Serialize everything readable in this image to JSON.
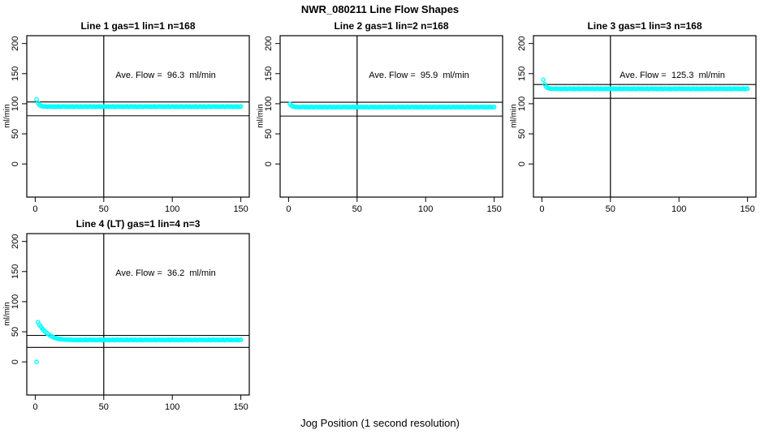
{
  "figure": {
    "title": "NWR_080211  Line Flow Shapes",
    "xlabel": "Jog Position (1 second resolution)",
    "point_color": "#00FFFF",
    "axis_color": "#000000",
    "background": "#FFFFFF"
  },
  "chart_data": [
    {
      "type": "scatter",
      "grid": {
        "row": 0,
        "col": 0
      },
      "title": "Line 1 gas=1 lin=1 n=168",
      "annotation": "Ave. Flow =  96.3  ml/min",
      "ave_flow_ml_min": 96.3,
      "n": 168,
      "ylabel": "ml/min",
      "xlim": [
        0,
        150
      ],
      "ylim_plotted": [
        -55,
        213
      ],
      "xticks": [
        0,
        50,
        100,
        150
      ],
      "yticks": [
        0,
        50,
        100,
        150,
        200
      ],
      "ref_vline_x": 50,
      "ref_hlines": [
        103,
        80
      ],
      "marker": "open-circle",
      "x_start": 1,
      "x_step": 1,
      "y": [
        107.2,
        101.2,
        98.2,
        96.7,
        96.0,
        95.6,
        95.4,
        95.3,
        95.2,
        95.5,
        95.4,
        95.0,
        95.6,
        94.9,
        95.3,
        95.1,
        95.7,
        94.8,
        95.2,
        95.5,
        95.4,
        95.0,
        95.6,
        94.9,
        95.3,
        95.1,
        95.7,
        94.8,
        95.2,
        95.5,
        95.4,
        95.0,
        95.6,
        94.9,
        95.3,
        95.1,
        95.7,
        94.8,
        95.2,
        95.5,
        95.4,
        95.0,
        95.6,
        94.9,
        95.3,
        95.1,
        95.7,
        94.8,
        95.2,
        95.5,
        95.4,
        95.0,
        95.6,
        94.9,
        95.3,
        95.1,
        95.7,
        94.8,
        95.2,
        95.5,
        95.4,
        95.0,
        95.6,
        94.9,
        95.3,
        95.1,
        95.7,
        94.8,
        95.2,
        95.5,
        95.4,
        95.0,
        95.6,
        94.9,
        95.3,
        95.1,
        95.7,
        94.8,
        95.2,
        95.5,
        95.4,
        95.0,
        95.6,
        94.9,
        95.3,
        95.1,
        95.7,
        94.8,
        95.2,
        95.5,
        95.4,
        95.0,
        95.6,
        94.9,
        95.3,
        95.1,
        95.7,
        94.8,
        95.2,
        95.5,
        95.4,
        95.0,
        95.6,
        94.9,
        95.3,
        95.1,
        95.7,
        94.8,
        95.2,
        95.5,
        95.4,
        95.0,
        95.6,
        94.9,
        95.3,
        95.1,
        95.7,
        94.8,
        95.2,
        95.5,
        95.4,
        95.0,
        95.6,
        94.9,
        95.3,
        95.1,
        95.7,
        94.8,
        95.2,
        95.5,
        95.4,
        95.0,
        95.6,
        94.9,
        95.3,
        95.1,
        95.7,
        94.8,
        95.2,
        95.5,
        95.4,
        95.0,
        95.6,
        94.9,
        95.3,
        95.1,
        95.7,
        94.8,
        95.2,
        95.5
      ]
    },
    {
      "type": "scatter",
      "grid": {
        "row": 0,
        "col": 1
      },
      "title": "Line 2 gas=1 lin=2 n=168",
      "annotation": "Ave. Flow =  95.9  ml/min",
      "ave_flow_ml_min": 95.9,
      "n": 168,
      "ylabel": "ml/min",
      "xlim": [
        0,
        150
      ],
      "ylim_plotted": [
        -55,
        213
      ],
      "xticks": [
        0,
        50,
        100,
        150
      ],
      "yticks": [
        0,
        50,
        100,
        150,
        200
      ],
      "ref_vline_x": 50,
      "ref_hlines": [
        102.5,
        79.5
      ],
      "marker": "open-circle",
      "x_start": 1,
      "x_step": 1,
      "y": [
        99.6,
        97.0,
        95.8,
        95.1,
        94.8,
        94.6,
        94.5,
        94.4,
        94.3,
        94.6,
        94.6,
        94.2,
        94.8,
        94.1,
        94.5,
        94.3,
        94.9,
        94.0,
        94.4,
        94.7,
        94.6,
        94.2,
        94.8,
        94.1,
        94.5,
        94.3,
        94.9,
        94.0,
        94.4,
        94.7,
        94.6,
        94.2,
        94.8,
        94.1,
        94.5,
        94.3,
        94.9,
        94.0,
        94.4,
        94.7,
        94.6,
        94.2,
        94.8,
        94.1,
        94.5,
        94.3,
        94.9,
        94.0,
        94.4,
        94.7,
        94.6,
        94.2,
        94.8,
        94.1,
        94.5,
        94.3,
        94.9,
        94.0,
        94.4,
        94.7,
        94.6,
        94.2,
        94.8,
        94.1,
        94.5,
        94.3,
        94.9,
        94.0,
        94.4,
        94.7,
        94.6,
        94.2,
        94.8,
        94.1,
        94.5,
        94.3,
        94.9,
        94.0,
        94.4,
        94.7,
        94.6,
        94.2,
        94.8,
        94.1,
        94.5,
        94.3,
        94.9,
        94.0,
        94.4,
        94.7,
        94.6,
        94.2,
        94.8,
        94.1,
        94.5,
        94.3,
        94.9,
        94.0,
        94.4,
        94.7,
        94.6,
        94.2,
        94.8,
        94.1,
        94.5,
        94.3,
        94.9,
        94.0,
        94.4,
        94.7,
        94.6,
        94.2,
        94.8,
        94.1,
        94.5,
        94.3,
        94.9,
        94.0,
        94.4,
        94.7,
        94.6,
        94.2,
        94.8,
        94.1,
        94.5,
        94.3,
        94.9,
        94.0,
        94.4,
        94.7,
        94.6,
        94.2,
        94.8,
        94.1,
        94.5,
        94.3,
        94.9,
        94.0,
        94.4,
        94.7,
        94.6,
        94.2,
        94.8,
        94.1,
        94.5,
        94.3,
        94.9,
        94.0,
        94.4,
        94.7
      ]
    },
    {
      "type": "scatter",
      "grid": {
        "row": 0,
        "col": 2
      },
      "title": "Line 3 gas=1 lin=3 n=168",
      "annotation": "Ave. Flow =  125.3  ml/min",
      "ave_flow_ml_min": 125.3,
      "n": 168,
      "ylabel": "ml/min",
      "xlim": [
        0,
        150
      ],
      "ylim_plotted": [
        -55,
        213
      ],
      "xticks": [
        0,
        50,
        100,
        150
      ],
      "yticks": [
        0,
        50,
        100,
        150,
        200
      ],
      "ref_vline_x": 50,
      "ref_hlines": [
        132,
        109
      ],
      "marker": "open-circle",
      "x_start": 1,
      "x_step": 1,
      "y": [
        140.0,
        132.5,
        128.5,
        126.6,
        125.7,
        125.2,
        125.0,
        124.9,
        124.8,
        125.1,
        125.0,
        124.6,
        125.2,
        124.5,
        124.9,
        124.7,
        125.3,
        124.4,
        124.8,
        125.1,
        125.0,
        124.6,
        125.2,
        124.5,
        124.9,
        124.7,
        125.3,
        124.4,
        124.8,
        125.1,
        125.0,
        124.6,
        125.2,
        124.5,
        124.9,
        124.7,
        125.3,
        124.4,
        124.8,
        125.1,
        125.0,
        124.6,
        125.2,
        124.5,
        124.9,
        124.7,
        125.3,
        124.4,
        124.8,
        125.1,
        125.0,
        124.6,
        125.2,
        124.5,
        124.9,
        124.7,
        125.3,
        124.4,
        124.8,
        125.1,
        125.0,
        124.6,
        125.2,
        124.5,
        124.9,
        124.7,
        125.3,
        124.4,
        124.8,
        125.1,
        125.0,
        124.6,
        125.2,
        124.5,
        124.9,
        124.7,
        125.3,
        124.4,
        124.8,
        125.1,
        125.0,
        124.6,
        125.2,
        124.5,
        124.9,
        124.7,
        125.3,
        124.4,
        124.8,
        125.1,
        125.0,
        124.6,
        125.2,
        124.5,
        124.9,
        124.7,
        125.3,
        124.4,
        124.8,
        125.1,
        125.0,
        124.6,
        125.2,
        124.5,
        124.9,
        124.7,
        125.3,
        124.4,
        124.8,
        125.1,
        125.0,
        124.6,
        125.2,
        124.5,
        124.9,
        124.7,
        125.3,
        124.4,
        124.8,
        125.1,
        125.0,
        124.6,
        125.2,
        124.5,
        124.9,
        124.7,
        125.3,
        124.4,
        124.8,
        125.1,
        125.0,
        124.6,
        125.2,
        124.5,
        124.9,
        124.7,
        125.3,
        124.4,
        124.8,
        125.1,
        125.0,
        124.6,
        125.2,
        124.5,
        124.9,
        124.7,
        125.3,
        124.4,
        124.8,
        125.1
      ]
    },
    {
      "type": "scatter",
      "grid": {
        "row": 1,
        "col": 0
      },
      "title": "Line 4 (LT) gas=1 lin=4 n=3",
      "annotation": "Ave. Flow =  36.2  ml/min",
      "ave_flow_ml_min": 36.2,
      "n": 3,
      "ylabel": "ml/min",
      "xlim": [
        0,
        150
      ],
      "ylim_plotted": [
        -55,
        213
      ],
      "xticks": [
        0,
        50,
        100,
        150
      ],
      "yticks": [
        0,
        50,
        100,
        150,
        200
      ],
      "ref_vline_x": 50,
      "ref_hlines": [
        44,
        24
      ],
      "marker": "open-circle",
      "x_start": 1,
      "x_step": 1,
      "y": [
        0.0,
        66.0,
        62.2,
        58.8,
        55.8,
        53.1,
        50.7,
        48.6,
        46.7,
        45.0,
        43.6,
        42.3,
        41.2,
        40.2,
        39.4,
        38.7,
        38.1,
        37.9,
        37.6,
        37.4,
        37.2,
        37.0,
        36.9,
        36.8,
        36.7,
        36.6,
        36.6,
        36.5,
        36.5,
        36.4,
        36.6,
        36.2,
        36.8,
        36.1,
        36.5,
        36.3,
        36.9,
        36.0,
        36.4,
        36.7,
        36.6,
        36.2,
        36.8,
        36.1,
        36.5,
        36.3,
        36.9,
        36.0,
        36.4,
        36.7,
        36.6,
        36.2,
        36.8,
        36.1,
        36.5,
        36.3,
        36.9,
        36.0,
        36.4,
        36.7,
        36.6,
        36.2,
        36.8,
        36.1,
        36.5,
        36.3,
        36.9,
        36.0,
        36.4,
        36.7,
        36.6,
        36.2,
        36.8,
        36.1,
        36.5,
        36.3,
        36.9,
        36.0,
        36.4,
        36.7,
        36.6,
        36.2,
        36.8,
        36.1,
        36.5,
        36.3,
        36.9,
        36.0,
        36.4,
        36.7,
        36.6,
        36.2,
        36.8,
        36.1,
        36.5,
        36.3,
        36.9,
        36.0,
        36.4,
        36.7,
        36.6,
        36.2,
        36.8,
        36.1,
        36.5,
        36.3,
        36.9,
        36.0,
        36.4,
        36.7,
        36.6,
        36.2,
        36.8,
        36.1,
        36.5,
        36.3,
        36.9,
        36.0,
        36.4,
        36.7,
        36.6,
        36.2,
        36.8,
        36.1,
        36.5,
        36.3,
        36.9,
        36.0,
        36.4,
        36.7,
        36.6,
        36.2,
        36.8,
        36.1,
        36.5,
        36.3,
        36.9,
        36.0,
        36.4,
        36.7,
        36.6,
        36.2,
        36.8,
        36.1,
        36.5,
        36.3,
        36.9,
        36.0,
        36.4,
        36.7
      ]
    }
  ]
}
